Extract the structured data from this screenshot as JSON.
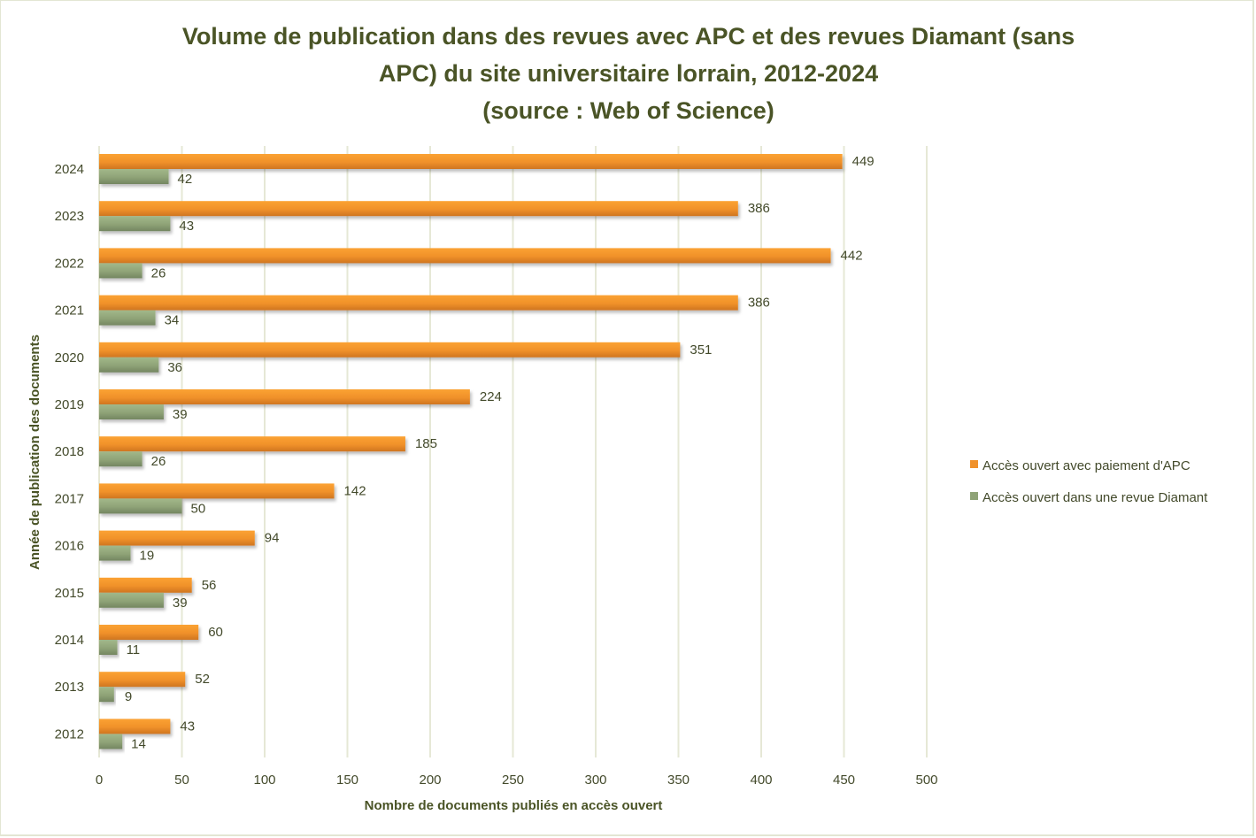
{
  "chart_data": {
    "type": "bar",
    "orientation": "horizontal",
    "title_lines": [
      "Volume de publication dans des revues avec APC et des revues Diamant (sans",
      "APC) du site universitaire lorrain, 2012-2024",
      "(source : Web of Science)"
    ],
    "xlabel": "Nombre de documents publiés en accès ouvert",
    "ylabel": "Année de publication des documents",
    "xlim": [
      0,
      500
    ],
    "xticks": [
      0,
      50,
      100,
      150,
      200,
      250,
      300,
      350,
      400,
      450,
      500
    ],
    "grid": true,
    "legend_position": "right",
    "categories": [
      "2024",
      "2023",
      "2022",
      "2021",
      "2020",
      "2019",
      "2018",
      "2017",
      "2016",
      "2015",
      "2014",
      "2013",
      "2012"
    ],
    "series": [
      {
        "name": "Accès ouvert avec paiement d'APC",
        "color": "#f0912a",
        "values": [
          449,
          386,
          442,
          386,
          351,
          224,
          185,
          142,
          94,
          56,
          60,
          52,
          43
        ]
      },
      {
        "name": "Accès ouvert dans une revue Diamant",
        "color": "#8fa377",
        "values": [
          42,
          43,
          26,
          34,
          36,
          39,
          26,
          50,
          19,
          39,
          11,
          9,
          14
        ]
      }
    ]
  }
}
